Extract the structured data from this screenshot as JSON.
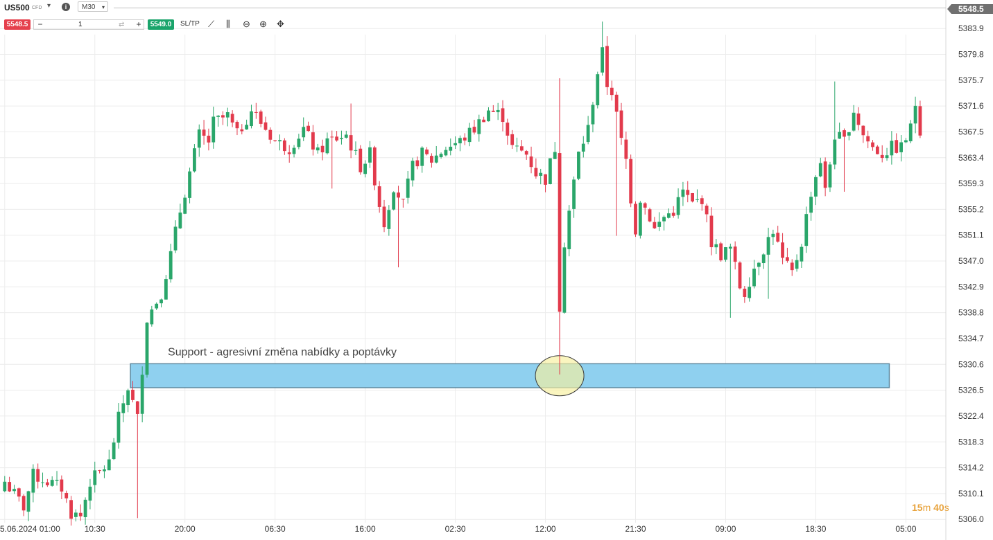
{
  "toolbar": {
    "symbol": "US500",
    "instrument_type": "CFD",
    "timeframe": "M30",
    "sell_price": "5548.5",
    "buy_price": "5549.0",
    "quantity": "1",
    "minus": "−",
    "plus": "+",
    "swap_glyph": "⇄",
    "sltp_label": "SL/TP",
    "icons": {
      "dropdown": "▾",
      "info": "i",
      "line_chart": "⟋",
      "candles": "⫼",
      "zoom_out": "⊖",
      "zoom_in": "⊕",
      "crosshair": "✥"
    },
    "colors": {
      "sell": "#e5404d",
      "buy": "#1aa46b"
    }
  },
  "current_price_tag": "5548.5",
  "countdown": {
    "minutes": "15",
    "min_unit": "m",
    "seconds": "40",
    "sec_unit": "s"
  },
  "chart_data": {
    "type": "candlestick",
    "timeframe": "M30",
    "ylim": [
      5304.2,
      5389.0
    ],
    "y_ticks": [
      5306.0,
      5310.1,
      5314.2,
      5318.3,
      5322.4,
      5326.5,
      5330.6,
      5334.7,
      5338.8,
      5342.9,
      5347.0,
      5351.1,
      5355.2,
      5359.3,
      5363.4,
      5367.5,
      5371.6,
      5375.7,
      5379.8,
      5383.9
    ],
    "y_tick_labels": [
      "5306.0",
      "5310.1",
      "5314.2",
      "5318.3",
      "5322.4",
      "5326.5",
      "5330.6",
      "5334.7",
      "5338.8",
      "5342.9",
      "5347.0",
      "5351.1",
      "5355.2",
      "5359.3",
      "5363.4",
      "5367.5",
      "5371.6",
      "5375.7",
      "5379.8",
      "5383.9"
    ],
    "x_tick_labels": [
      "5.06.2024 01:00",
      "10:30",
      "20:00",
      "06:30",
      "16:00",
      "02:30",
      "12:00",
      "21:30",
      "09:00",
      "18:30",
      "05:00"
    ],
    "x_tick_candle_index": [
      0,
      19,
      38,
      57,
      76,
      95,
      114,
      133,
      152,
      171,
      190
    ],
    "grid": true,
    "colors": {
      "up": "#2aa66a",
      "down": "#e23a4c",
      "zone_fill": "#8fd0ef",
      "zone_border": "#5f8aa0",
      "highlight": "#f7ef9d"
    },
    "anchors": [
      {
        "i": 0,
        "p": 5312
      },
      {
        "i": 4,
        "p": 5308
      },
      {
        "i": 6,
        "p": 5313
      },
      {
        "i": 12,
        "p": 5311
      },
      {
        "i": 14,
        "p": 5307
      },
      {
        "i": 16,
        "p": 5306.5
      },
      {
        "i": 18,
        "p": 5312
      },
      {
        "i": 22,
        "p": 5315
      },
      {
        "i": 24,
        "p": 5322
      },
      {
        "i": 26,
        "p": 5327
      },
      {
        "i": 28,
        "p": 5322
      },
      {
        "i": 30,
        "p": 5338
      },
      {
        "i": 33,
        "p": 5342
      },
      {
        "i": 35,
        "p": 5348
      },
      {
        "i": 37,
        "p": 5355
      },
      {
        "i": 39,
        "p": 5361
      },
      {
        "i": 41,
        "p": 5367
      },
      {
        "i": 43,
        "p": 5366
      },
      {
        "i": 44,
        "p": 5369
      },
      {
        "i": 47,
        "p": 5370
      },
      {
        "i": 49,
        "p": 5367
      },
      {
        "i": 52,
        "p": 5371
      },
      {
        "i": 54,
        "p": 5369
      },
      {
        "i": 57,
        "p": 5366
      },
      {
        "i": 60,
        "p": 5365
      },
      {
        "i": 63,
        "p": 5368
      },
      {
        "i": 66,
        "p": 5364
      },
      {
        "i": 68,
        "p": 5366
      },
      {
        "i": 72,
        "p": 5367
      },
      {
        "i": 75,
        "p": 5362
      },
      {
        "i": 77,
        "p": 5364
      },
      {
        "i": 79,
        "p": 5356
      },
      {
        "i": 80,
        "p": 5353
      },
      {
        "i": 82,
        "p": 5359
      },
      {
        "i": 84,
        "p": 5356
      },
      {
        "i": 86,
        "p": 5362
      },
      {
        "i": 88,
        "p": 5364
      },
      {
        "i": 90,
        "p": 5363
      },
      {
        "i": 93,
        "p": 5365
      },
      {
        "i": 96,
        "p": 5366
      },
      {
        "i": 99,
        "p": 5368
      },
      {
        "i": 102,
        "p": 5371
      },
      {
        "i": 105,
        "p": 5370
      },
      {
        "i": 107,
        "p": 5365
      },
      {
        "i": 110,
        "p": 5364
      },
      {
        "i": 112,
        "p": 5361
      },
      {
        "i": 114,
        "p": 5360
      },
      {
        "i": 116,
        "p": 5365
      },
      {
        "i": 117,
        "p": 5340
      },
      {
        "i": 118,
        "p": 5350
      },
      {
        "i": 119,
        "p": 5355
      },
      {
        "i": 121,
        "p": 5364
      },
      {
        "i": 123,
        "p": 5368
      },
      {
        "i": 125,
        "p": 5377
      },
      {
        "i": 126,
        "p": 5380
      },
      {
        "i": 127,
        "p": 5375
      },
      {
        "i": 128,
        "p": 5374
      },
      {
        "i": 130,
        "p": 5366
      },
      {
        "i": 131,
        "p": 5363
      },
      {
        "i": 132,
        "p": 5357
      },
      {
        "i": 133,
        "p": 5352
      },
      {
        "i": 134,
        "p": 5357
      },
      {
        "i": 136,
        "p": 5354
      },
      {
        "i": 137,
        "p": 5352
      },
      {
        "i": 139,
        "p": 5354
      },
      {
        "i": 141,
        "p": 5355
      },
      {
        "i": 143,
        "p": 5358
      },
      {
        "i": 145,
        "p": 5356
      },
      {
        "i": 147,
        "p": 5357
      },
      {
        "i": 149,
        "p": 5350
      },
      {
        "i": 151,
        "p": 5348
      },
      {
        "i": 153,
        "p": 5349
      },
      {
        "i": 155,
        "p": 5343
      },
      {
        "i": 156,
        "p": 5342
      },
      {
        "i": 158,
        "p": 5346
      },
      {
        "i": 160,
        "p": 5349
      },
      {
        "i": 162,
        "p": 5352
      },
      {
        "i": 164,
        "p": 5347
      },
      {
        "i": 166,
        "p": 5345
      },
      {
        "i": 168,
        "p": 5350
      },
      {
        "i": 170,
        "p": 5358
      },
      {
        "i": 172,
        "p": 5363
      },
      {
        "i": 173,
        "p": 5358
      },
      {
        "i": 175,
        "p": 5367
      },
      {
        "i": 177,
        "p": 5366
      },
      {
        "i": 179,
        "p": 5371
      },
      {
        "i": 181,
        "p": 5367
      },
      {
        "i": 183,
        "p": 5365
      },
      {
        "i": 185,
        "p": 5364
      },
      {
        "i": 187,
        "p": 5365
      },
      {
        "i": 189,
        "p": 5365
      },
      {
        "i": 191,
        "p": 5368
      },
      {
        "i": 192,
        "p": 5372
      },
      {
        "i": 193,
        "p": 5368
      }
    ],
    "candle_count": 194,
    "wick_extremes": [
      {
        "i": 28,
        "low": 5306.2
      },
      {
        "i": 30,
        "high": 5333
      },
      {
        "i": 73,
        "high": 5372
      },
      {
        "i": 69,
        "low": 5358.5
      },
      {
        "i": 81,
        "low": 5351
      },
      {
        "i": 83,
        "low": 5346
      },
      {
        "i": 117,
        "high": 5376,
        "low": 5329
      },
      {
        "i": 118,
        "low": 5340
      },
      {
        "i": 126,
        "high": 5385
      },
      {
        "i": 129,
        "low": 5351
      },
      {
        "i": 153,
        "low": 5338
      },
      {
        "i": 161,
        "low": 5341
      },
      {
        "i": 175,
        "high": 5375.5
      },
      {
        "i": 177,
        "low": 5358
      }
    ],
    "annotations": [
      {
        "type": "zone",
        "label": "Support - agresivní změna nabídky a poptávky",
        "y_range": [
          5326.9,
          5330.7
        ],
        "x_candle_range": [
          26.5,
          186.5
        ]
      },
      {
        "type": "ellipse",
        "center_candle": 117,
        "center_price": 5328.8,
        "note": ""
      }
    ]
  }
}
